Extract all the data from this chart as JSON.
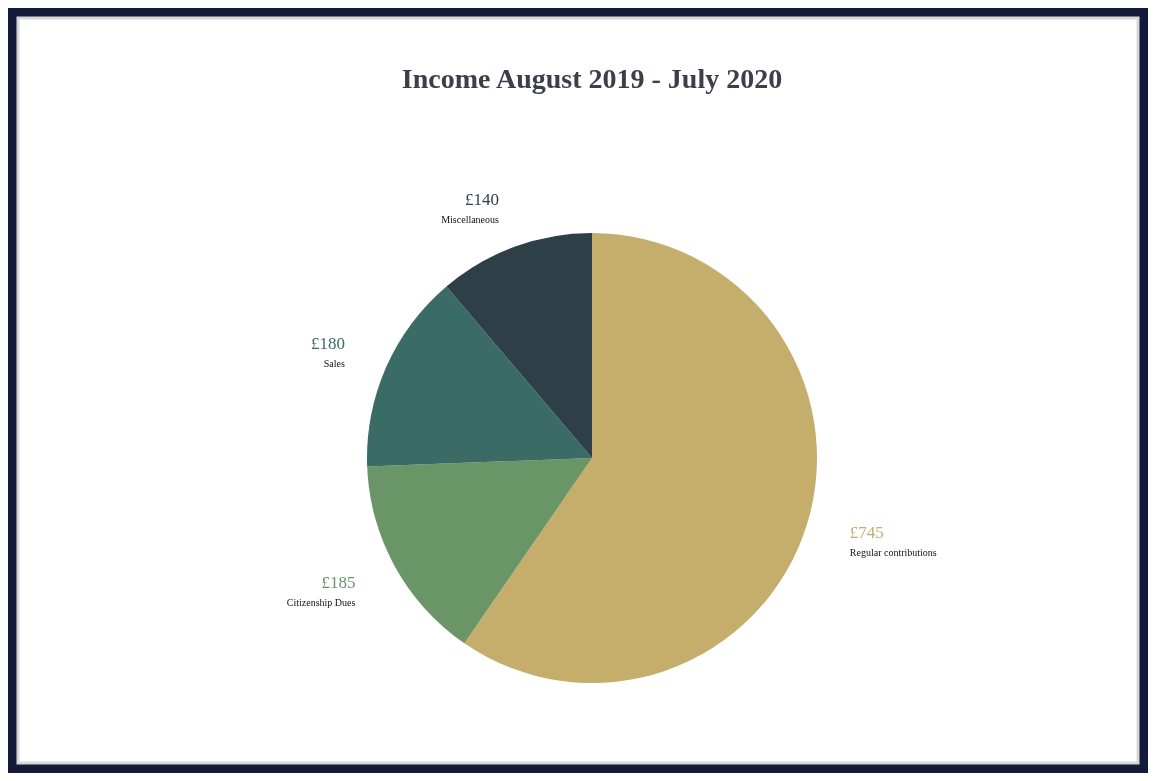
{
  "chart_data": {
    "type": "pie",
    "title": "Income August 2019 - July 2020",
    "categories": [
      "Regular contributions",
      "Citizenship Dues",
      "Sales",
      "Miscellaneous"
    ],
    "values": [
      745,
      185,
      180,
      140
    ],
    "colors": [
      "#c5ae6c",
      "#6a9566",
      "#3b6b65",
      "#2e3f48"
    ],
    "value_labels": [
      "£745",
      "£185",
      "£180",
      "£140"
    ],
    "legend": false
  }
}
